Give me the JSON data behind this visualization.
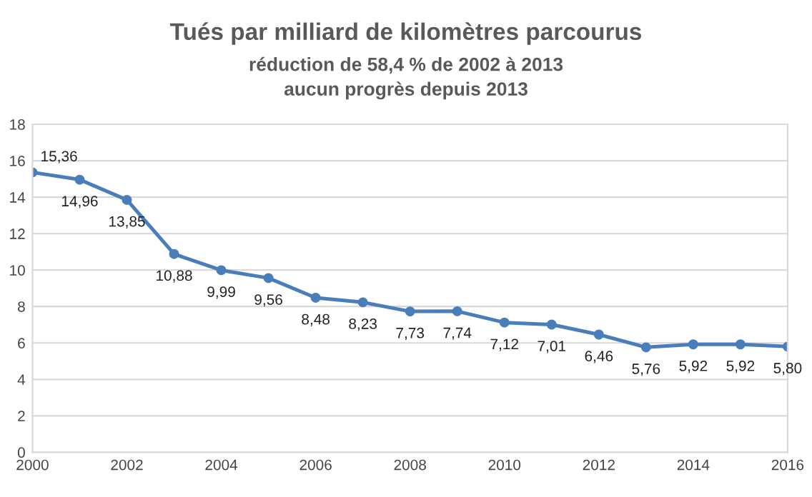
{
  "chart_data": {
    "type": "line",
    "title": "Tués par milliard de kilomètres parcourus",
    "subtitle": "réduction de 58,4 % de 2002 à 2013\naucun progrès depuis 2013",
    "x": [
      2000,
      2001,
      2002,
      2003,
      2004,
      2005,
      2006,
      2007,
      2008,
      2009,
      2010,
      2011,
      2012,
      2013,
      2014,
      2015,
      2016
    ],
    "series": [
      {
        "color": "#4a7ebb",
        "values": [
          15.36,
          14.96,
          13.85,
          10.88,
          9.99,
          9.56,
          8.48,
          8.23,
          7.73,
          7.74,
          7.12,
          7.01,
          6.46,
          5.76,
          5.92,
          5.92,
          5.8
        ],
        "value_labels": [
          "15,36",
          "14,96",
          "13,85",
          "10,88",
          "9,99",
          "9,56",
          "8,48",
          "8,23",
          "7,73",
          "7,74",
          "7,12",
          "7,01",
          "6,46",
          "5,76",
          "5,92",
          "5,92",
          "5,80"
        ]
      }
    ],
    "xlim": [
      2000,
      2016
    ],
    "xticks": [
      2000,
      2002,
      2004,
      2006,
      2008,
      2010,
      2012,
      2014,
      2016
    ],
    "ylim": [
      0,
      18
    ],
    "yticks": [
      0,
      2,
      4,
      6,
      8,
      10,
      12,
      14,
      16,
      18
    ],
    "grid": "y",
    "marker": "circle",
    "line_style": "solid"
  }
}
